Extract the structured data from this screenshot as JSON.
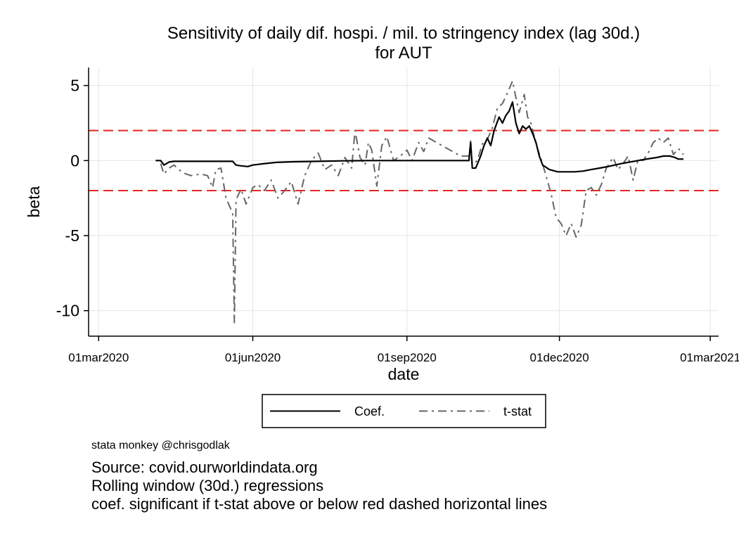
{
  "chart_data": {
    "type": "line",
    "title": [
      "Sensitivity of daily dif. hospi. / mil. to stringency index (lag 30d.)",
      "for AUT"
    ],
    "xlabel": "date",
    "ylabel": "beta",
    "xlim": [
      "2020-02-24",
      "2021-03-06"
    ],
    "ylim": [
      -11.7,
      6.2
    ],
    "x_ticks": [
      {
        "date": "2020-03-01",
        "label": "01mar2020"
      },
      {
        "date": "2020-06-01",
        "label": "01jun2020"
      },
      {
        "date": "2020-09-01",
        "label": "01sep2020"
      },
      {
        "date": "2020-12-01",
        "label": "01dec2020"
      },
      {
        "date": "2021-03-01",
        "label": "01mar2021"
      }
    ],
    "y_ticks": [
      5,
      0,
      -5,
      -10
    ],
    "grid": true,
    "reference_lines": [
      {
        "y": 2,
        "color": "#e8251f",
        "style": "dashed"
      },
      {
        "y": -2,
        "color": "#e8251f",
        "style": "dashed"
      }
    ],
    "legend_position": "bottom",
    "series": [
      {
        "name": "Coef.",
        "color": "#000000",
        "style": "solid",
        "points": [
          [
            "2020-04-04",
            0.0
          ],
          [
            "2020-04-07",
            0.0
          ],
          [
            "2020-04-09",
            -0.3
          ],
          [
            "2020-04-12",
            -0.1
          ],
          [
            "2020-04-15",
            -0.05
          ],
          [
            "2020-04-25",
            -0.05
          ],
          [
            "2020-05-05",
            -0.05
          ],
          [
            "2020-05-15",
            -0.05
          ],
          [
            "2020-05-20",
            -0.05
          ],
          [
            "2020-05-22",
            -0.3
          ],
          [
            "2020-05-25",
            -0.35
          ],
          [
            "2020-05-29",
            -0.4
          ],
          [
            "2020-06-01",
            -0.3
          ],
          [
            "2020-06-08",
            -0.2
          ],
          [
            "2020-06-15",
            -0.12
          ],
          [
            "2020-06-25",
            -0.08
          ],
          [
            "2020-07-10",
            -0.05
          ],
          [
            "2020-07-25",
            -0.02
          ],
          [
            "2020-08-10",
            0.0
          ],
          [
            "2020-08-25",
            0.0
          ],
          [
            "2020-09-10",
            0.0
          ],
          [
            "2020-09-25",
            0.0
          ],
          [
            "2020-10-05",
            0.0
          ],
          [
            "2020-10-08",
            0.0
          ],
          [
            "2020-10-09",
            1.2
          ],
          [
            "2020-10-10",
            -0.5
          ],
          [
            "2020-10-12",
            -0.5
          ],
          [
            "2020-10-15",
            0.3
          ],
          [
            "2020-10-17",
            1.0
          ],
          [
            "2020-10-19",
            1.5
          ],
          [
            "2020-10-21",
            1.0
          ],
          [
            "2020-10-23",
            2.0
          ],
          [
            "2020-10-26",
            2.9
          ],
          [
            "2020-10-28",
            2.5
          ],
          [
            "2020-10-30",
            3.0
          ],
          [
            "2020-11-01",
            3.3
          ],
          [
            "2020-11-03",
            3.9
          ],
          [
            "2020-11-05",
            2.5
          ],
          [
            "2020-11-07",
            1.8
          ],
          [
            "2020-11-09",
            2.3
          ],
          [
            "2020-11-11",
            2.1
          ],
          [
            "2020-11-13",
            2.3
          ],
          [
            "2020-11-15",
            1.8
          ],
          [
            "2020-11-17",
            1.2
          ],
          [
            "2020-11-19",
            0.3
          ],
          [
            "2020-11-21",
            -0.3
          ],
          [
            "2020-11-25",
            -0.6
          ],
          [
            "2020-11-30",
            -0.75
          ],
          [
            "2020-12-05",
            -0.75
          ],
          [
            "2020-12-10",
            -0.75
          ],
          [
            "2020-12-15",
            -0.7
          ],
          [
            "2020-12-20",
            -0.6
          ],
          [
            "2020-12-25",
            -0.5
          ],
          [
            "2020-12-30",
            -0.4
          ],
          [
            "2021-01-03",
            -0.3
          ],
          [
            "2021-01-07",
            -0.2
          ],
          [
            "2021-01-12",
            -0.1
          ],
          [
            "2021-01-17",
            0.0
          ],
          [
            "2021-01-22",
            0.1
          ],
          [
            "2021-01-28",
            0.2
          ],
          [
            "2021-02-01",
            0.3
          ],
          [
            "2021-02-05",
            0.3
          ],
          [
            "2021-02-08",
            0.2
          ],
          [
            "2021-02-10",
            0.1
          ],
          [
            "2021-02-13",
            0.1
          ]
        ]
      },
      {
        "name": "t-stat",
        "color": "#666666",
        "style": "dash-dot",
        "points": [
          [
            "2020-04-07",
            -0.2
          ],
          [
            "2020-04-09",
            -0.9
          ],
          [
            "2020-04-12",
            -0.5
          ],
          [
            "2020-04-15",
            -0.3
          ],
          [
            "2020-04-20",
            -0.8
          ],
          [
            "2020-04-25",
            -1.0
          ],
          [
            "2020-05-01",
            -0.9
          ],
          [
            "2020-05-05",
            -1.0
          ],
          [
            "2020-05-08",
            -1.8
          ],
          [
            "2020-05-10",
            -0.6
          ],
          [
            "2020-05-13",
            -0.5
          ],
          [
            "2020-05-16",
            -2.5
          ],
          [
            "2020-05-20",
            -3.5
          ],
          [
            "2020-05-21",
            -10.8
          ],
          [
            "2020-05-22",
            -2.6
          ],
          [
            "2020-05-25",
            -1.9
          ],
          [
            "2020-05-28",
            -2.9
          ],
          [
            "2020-06-01",
            -1.8
          ],
          [
            "2020-06-04",
            -1.6
          ],
          [
            "2020-06-08",
            -2.0
          ],
          [
            "2020-06-12",
            -1.3
          ],
          [
            "2020-06-16",
            -2.5
          ],
          [
            "2020-06-20",
            -2.0
          ],
          [
            "2020-06-24",
            -1.4
          ],
          [
            "2020-06-28",
            -2.9
          ],
          [
            "2020-07-02",
            -1.0
          ],
          [
            "2020-07-06",
            0.0
          ],
          [
            "2020-07-10",
            0.5
          ],
          [
            "2020-07-14",
            -0.6
          ],
          [
            "2020-07-18",
            -0.3
          ],
          [
            "2020-07-22",
            -1.0
          ],
          [
            "2020-07-26",
            0.2
          ],
          [
            "2020-07-30",
            -0.5
          ],
          [
            "2020-08-01",
            2.0
          ],
          [
            "2020-08-04",
            0.2
          ],
          [
            "2020-08-07",
            -0.3
          ],
          [
            "2020-08-09",
            1.2
          ],
          [
            "2020-08-11",
            0.7
          ],
          [
            "2020-08-14",
            -1.7
          ],
          [
            "2020-08-17",
            1.0
          ],
          [
            "2020-08-20",
            1.6
          ],
          [
            "2020-08-24",
            0.0
          ],
          [
            "2020-08-28",
            0.3
          ],
          [
            "2020-09-01",
            0.7
          ],
          [
            "2020-09-04",
            0.0
          ],
          [
            "2020-09-08",
            1.2
          ],
          [
            "2020-09-11",
            0.6
          ],
          [
            "2020-09-14",
            1.5
          ],
          [
            "2020-10-03",
            0.3
          ],
          [
            "2020-10-08",
            0.3
          ],
          [
            "2020-10-09",
            1.3
          ],
          [
            "2020-10-10",
            -0.3
          ],
          [
            "2020-10-13",
            0.0
          ],
          [
            "2020-10-16",
            1.1
          ],
          [
            "2020-10-19",
            1.4
          ],
          [
            "2020-10-22",
            2.2
          ],
          [
            "2020-10-25",
            3.5
          ],
          [
            "2020-10-28",
            3.8
          ],
          [
            "2020-10-31",
            4.5
          ],
          [
            "2020-11-03",
            5.3
          ],
          [
            "2020-11-05",
            4.2
          ],
          [
            "2020-11-07",
            3.2
          ],
          [
            "2020-11-10",
            4.4
          ],
          [
            "2020-11-12",
            2.9
          ],
          [
            "2020-11-14",
            2.5
          ],
          [
            "2020-11-17",
            1.1
          ],
          [
            "2020-11-20",
            0.1
          ],
          [
            "2020-11-23",
            -1.0
          ],
          [
            "2020-11-26",
            -2.2
          ],
          [
            "2020-11-29",
            -3.8
          ],
          [
            "2020-12-02",
            -4.2
          ],
          [
            "2020-12-05",
            -5.0
          ],
          [
            "2020-12-08",
            -4.2
          ],
          [
            "2020-12-11",
            -5.1
          ],
          [
            "2020-12-14",
            -4.3
          ],
          [
            "2020-12-17",
            -2.0
          ],
          [
            "2020-12-20",
            -1.8
          ],
          [
            "2020-12-23",
            -2.3
          ],
          [
            "2020-12-26",
            -1.6
          ],
          [
            "2020-12-29",
            -0.5
          ],
          [
            "2021-01-02",
            0.2
          ],
          [
            "2021-01-05",
            -0.6
          ],
          [
            "2021-01-08",
            -0.2
          ],
          [
            "2021-01-11",
            0.3
          ],
          [
            "2021-01-14",
            -1.3
          ],
          [
            "2021-01-17",
            0.1
          ],
          [
            "2021-01-20",
            0.0
          ],
          [
            "2021-01-23",
            0.5
          ],
          [
            "2021-01-26",
            1.2
          ],
          [
            "2021-01-29",
            1.5
          ],
          [
            "2021-02-01",
            1.2
          ],
          [
            "2021-02-04",
            1.5
          ],
          [
            "2021-02-07",
            0.4
          ],
          [
            "2021-02-10",
            0.8
          ],
          [
            "2021-02-13",
            0.4
          ]
        ]
      }
    ]
  },
  "notes": {
    "credit": "stata monkey @chrisgodlak",
    "lines": [
      "Source: covid.ourworldindata.org",
      "Rolling window (30d.) regressions",
      "coef. significant if t-stat above or below red dashed horizontal lines"
    ]
  }
}
